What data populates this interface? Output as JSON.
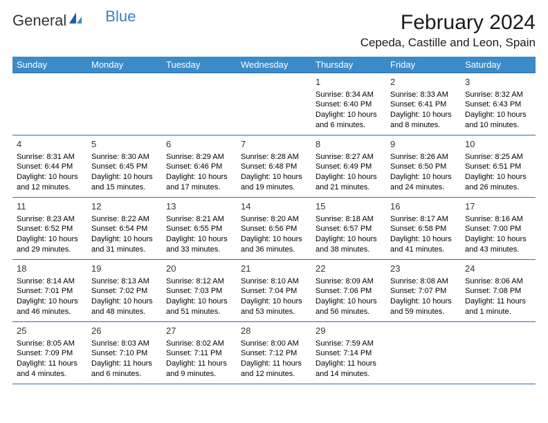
{
  "logo": {
    "part1": "General",
    "part2": "Blue"
  },
  "title": "February 2024",
  "location": "Cepeda, Castille and Leon, Spain",
  "colors": {
    "header_bg": "#3b8bc9",
    "header_text": "#ffffff",
    "rule": "#2e6da4",
    "logo_blue": "#3b7fc4"
  },
  "weekdays": [
    "Sunday",
    "Monday",
    "Tuesday",
    "Wednesday",
    "Thursday",
    "Friday",
    "Saturday"
  ],
  "weeks": [
    [
      null,
      null,
      null,
      null,
      {
        "n": "1",
        "sr": "Sunrise: 8:34 AM",
        "ss": "Sunset: 6:40 PM",
        "d1": "Daylight: 10 hours",
        "d2": "and 6 minutes."
      },
      {
        "n": "2",
        "sr": "Sunrise: 8:33 AM",
        "ss": "Sunset: 6:41 PM",
        "d1": "Daylight: 10 hours",
        "d2": "and 8 minutes."
      },
      {
        "n": "3",
        "sr": "Sunrise: 8:32 AM",
        "ss": "Sunset: 6:43 PM",
        "d1": "Daylight: 10 hours",
        "d2": "and 10 minutes."
      }
    ],
    [
      {
        "n": "4",
        "sr": "Sunrise: 8:31 AM",
        "ss": "Sunset: 6:44 PM",
        "d1": "Daylight: 10 hours",
        "d2": "and 12 minutes."
      },
      {
        "n": "5",
        "sr": "Sunrise: 8:30 AM",
        "ss": "Sunset: 6:45 PM",
        "d1": "Daylight: 10 hours",
        "d2": "and 15 minutes."
      },
      {
        "n": "6",
        "sr": "Sunrise: 8:29 AM",
        "ss": "Sunset: 6:46 PM",
        "d1": "Daylight: 10 hours",
        "d2": "and 17 minutes."
      },
      {
        "n": "7",
        "sr": "Sunrise: 8:28 AM",
        "ss": "Sunset: 6:48 PM",
        "d1": "Daylight: 10 hours",
        "d2": "and 19 minutes."
      },
      {
        "n": "8",
        "sr": "Sunrise: 8:27 AM",
        "ss": "Sunset: 6:49 PM",
        "d1": "Daylight: 10 hours",
        "d2": "and 21 minutes."
      },
      {
        "n": "9",
        "sr": "Sunrise: 8:26 AM",
        "ss": "Sunset: 6:50 PM",
        "d1": "Daylight: 10 hours",
        "d2": "and 24 minutes."
      },
      {
        "n": "10",
        "sr": "Sunrise: 8:25 AM",
        "ss": "Sunset: 6:51 PM",
        "d1": "Daylight: 10 hours",
        "d2": "and 26 minutes."
      }
    ],
    [
      {
        "n": "11",
        "sr": "Sunrise: 8:23 AM",
        "ss": "Sunset: 6:52 PM",
        "d1": "Daylight: 10 hours",
        "d2": "and 29 minutes."
      },
      {
        "n": "12",
        "sr": "Sunrise: 8:22 AM",
        "ss": "Sunset: 6:54 PM",
        "d1": "Daylight: 10 hours",
        "d2": "and 31 minutes."
      },
      {
        "n": "13",
        "sr": "Sunrise: 8:21 AM",
        "ss": "Sunset: 6:55 PM",
        "d1": "Daylight: 10 hours",
        "d2": "and 33 minutes."
      },
      {
        "n": "14",
        "sr": "Sunrise: 8:20 AM",
        "ss": "Sunset: 6:56 PM",
        "d1": "Daylight: 10 hours",
        "d2": "and 36 minutes."
      },
      {
        "n": "15",
        "sr": "Sunrise: 8:18 AM",
        "ss": "Sunset: 6:57 PM",
        "d1": "Daylight: 10 hours",
        "d2": "and 38 minutes."
      },
      {
        "n": "16",
        "sr": "Sunrise: 8:17 AM",
        "ss": "Sunset: 6:58 PM",
        "d1": "Daylight: 10 hours",
        "d2": "and 41 minutes."
      },
      {
        "n": "17",
        "sr": "Sunrise: 8:16 AM",
        "ss": "Sunset: 7:00 PM",
        "d1": "Daylight: 10 hours",
        "d2": "and 43 minutes."
      }
    ],
    [
      {
        "n": "18",
        "sr": "Sunrise: 8:14 AM",
        "ss": "Sunset: 7:01 PM",
        "d1": "Daylight: 10 hours",
        "d2": "and 46 minutes."
      },
      {
        "n": "19",
        "sr": "Sunrise: 8:13 AM",
        "ss": "Sunset: 7:02 PM",
        "d1": "Daylight: 10 hours",
        "d2": "and 48 minutes."
      },
      {
        "n": "20",
        "sr": "Sunrise: 8:12 AM",
        "ss": "Sunset: 7:03 PM",
        "d1": "Daylight: 10 hours",
        "d2": "and 51 minutes."
      },
      {
        "n": "21",
        "sr": "Sunrise: 8:10 AM",
        "ss": "Sunset: 7:04 PM",
        "d1": "Daylight: 10 hours",
        "d2": "and 53 minutes."
      },
      {
        "n": "22",
        "sr": "Sunrise: 8:09 AM",
        "ss": "Sunset: 7:06 PM",
        "d1": "Daylight: 10 hours",
        "d2": "and 56 minutes."
      },
      {
        "n": "23",
        "sr": "Sunrise: 8:08 AM",
        "ss": "Sunset: 7:07 PM",
        "d1": "Daylight: 10 hours",
        "d2": "and 59 minutes."
      },
      {
        "n": "24",
        "sr": "Sunrise: 8:06 AM",
        "ss": "Sunset: 7:08 PM",
        "d1": "Daylight: 11 hours",
        "d2": "and 1 minute."
      }
    ],
    [
      {
        "n": "25",
        "sr": "Sunrise: 8:05 AM",
        "ss": "Sunset: 7:09 PM",
        "d1": "Daylight: 11 hours",
        "d2": "and 4 minutes."
      },
      {
        "n": "26",
        "sr": "Sunrise: 8:03 AM",
        "ss": "Sunset: 7:10 PM",
        "d1": "Daylight: 11 hours",
        "d2": "and 6 minutes."
      },
      {
        "n": "27",
        "sr": "Sunrise: 8:02 AM",
        "ss": "Sunset: 7:11 PM",
        "d1": "Daylight: 11 hours",
        "d2": "and 9 minutes."
      },
      {
        "n": "28",
        "sr": "Sunrise: 8:00 AM",
        "ss": "Sunset: 7:12 PM",
        "d1": "Daylight: 11 hours",
        "d2": "and 12 minutes."
      },
      {
        "n": "29",
        "sr": "Sunrise: 7:59 AM",
        "ss": "Sunset: 7:14 PM",
        "d1": "Daylight: 11 hours",
        "d2": "and 14 minutes."
      },
      null,
      null
    ]
  ]
}
